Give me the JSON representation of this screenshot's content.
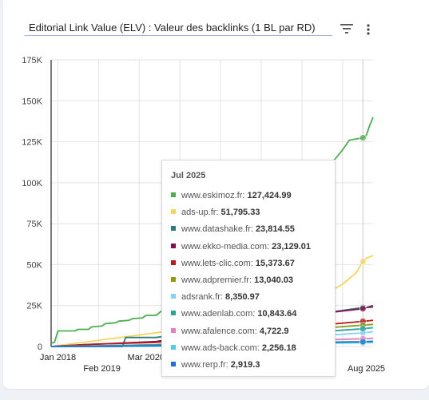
{
  "header": {
    "select_title": "Editorial Link Value (ELV) : Valeur des backlinks (1 BL par RD)"
  },
  "icons": {
    "filter": "filter-icon",
    "menu": "more-vertical-icon"
  },
  "chart_data": {
    "type": "line",
    "title": "",
    "xlabel": "",
    "ylabel": "",
    "ylim": [
      0,
      175000
    ],
    "y_ticks": [
      "0",
      "25K",
      "50K",
      "75K",
      "100K",
      "125K",
      "150K",
      "175K"
    ],
    "x_ticks": [
      {
        "label": "Jan 2018",
        "date": "2018-01"
      },
      {
        "label": "Feb 2019",
        "date": "2019-02"
      },
      {
        "label": "Mar 2020",
        "date": "2020-03"
      },
      {
        "label": "Aug 2025",
        "date": "2025-08"
      }
    ],
    "x_range": [
      "2017-11",
      "2025-10"
    ],
    "grid": true,
    "tooltip": {
      "title": "Jul 2025",
      "date": "2025-07"
    },
    "series": [
      {
        "name": "www.eskimoz.fr",
        "color": "#4caf50",
        "tooltip_value": "127,424.99",
        "points": [
          [
            "2017-11",
            2000
          ],
          [
            "2017-12",
            2500
          ],
          [
            "2018-01",
            9500
          ],
          [
            "2018-06",
            9500
          ],
          [
            "2018-07",
            10500
          ],
          [
            "2018-10",
            10500
          ],
          [
            "2018-11",
            12000
          ],
          [
            "2019-02",
            12500
          ],
          [
            "2019-03",
            14000
          ],
          [
            "2019-06",
            14500
          ],
          [
            "2019-07",
            15500
          ],
          [
            "2019-10",
            16000
          ],
          [
            "2019-11",
            17000
          ],
          [
            "2020-02",
            17500
          ],
          [
            "2020-03",
            19000
          ],
          [
            "2020-06",
            19000
          ],
          [
            "2024-05",
            100000
          ],
          [
            "2024-09",
            110000
          ],
          [
            "2025-01",
            120000
          ],
          [
            "2025-03",
            126000
          ],
          [
            "2025-07",
            127424.99
          ],
          [
            "2025-08",
            129000
          ],
          [
            "2025-09",
            135000
          ],
          [
            "2025-10",
            140000
          ]
        ]
      },
      {
        "name": "ads-up.fr",
        "color": "#f6d55c",
        "tooltip_value": "51,795.33",
        "points": [
          [
            "2017-11",
            0
          ],
          [
            "2024-01",
            20000
          ],
          [
            "2024-06",
            30000
          ],
          [
            "2025-01",
            38000
          ],
          [
            "2025-05",
            45000
          ],
          [
            "2025-07",
            51795.33
          ],
          [
            "2025-08",
            54000
          ],
          [
            "2025-10",
            55500
          ]
        ]
      },
      {
        "name": "www.datashake.fr",
        "color": "#2e7d7d",
        "tooltip_value": "23,814.55",
        "points": [
          [
            "2017-11",
            0
          ],
          [
            "2019-08",
            0
          ],
          [
            "2019-09",
            5500
          ],
          [
            "2020-06",
            5500
          ],
          [
            "2024-06",
            20000
          ],
          [
            "2025-07",
            23814.55
          ],
          [
            "2025-10",
            24000
          ]
        ]
      },
      {
        "name": "www.ekko-media.com",
        "color": "#880e4f",
        "tooltip_value": "23,129.01",
        "points": [
          [
            "2017-11",
            0
          ],
          [
            "2019-01",
            1500
          ],
          [
            "2020-06",
            3000
          ],
          [
            "2024-06",
            20000
          ],
          [
            "2025-07",
            23129.01
          ],
          [
            "2025-10",
            25000
          ]
        ]
      },
      {
        "name": "www.lets-clic.com",
        "color": "#b71c1c",
        "tooltip_value": "15,373.67",
        "points": [
          [
            "2017-11",
            0
          ],
          [
            "2018-09",
            1200
          ],
          [
            "2020-06",
            2500
          ],
          [
            "2024-06",
            13000
          ],
          [
            "2025-07",
            15373.67
          ],
          [
            "2025-10",
            16000
          ]
        ]
      },
      {
        "name": "www.adpremier.fr",
        "color": "#8d9a1a",
        "tooltip_value": "13,040.03",
        "points": [
          [
            "2017-11",
            0
          ],
          [
            "2020-06",
            1000
          ],
          [
            "2024-06",
            11000
          ],
          [
            "2025-07",
            13040.03
          ],
          [
            "2025-10",
            13500
          ]
        ]
      },
      {
        "name": "adsrank.fr",
        "color": "#81d4fa",
        "tooltip_value": "8,350.97",
        "points": [
          [
            "2017-11",
            0
          ],
          [
            "2020-06",
            800
          ],
          [
            "2024-06",
            6500
          ],
          [
            "2025-07",
            8350.97
          ],
          [
            "2025-10",
            9000
          ]
        ]
      },
      {
        "name": "www.adenlab.com",
        "color": "#26a69a",
        "tooltip_value": "10,843.64",
        "points": [
          [
            "2017-11",
            0
          ],
          [
            "2020-06",
            1000
          ],
          [
            "2024-06",
            9000
          ],
          [
            "2025-07",
            10843.64
          ],
          [
            "2025-10",
            11500
          ]
        ]
      },
      {
        "name": "www.afalence.com",
        "color": "#e57fb6",
        "tooltip_value": "4,722.9",
        "points": [
          [
            "2017-11",
            0
          ],
          [
            "2020-06",
            500
          ],
          [
            "2024-06",
            4000
          ],
          [
            "2025-07",
            4722.9
          ],
          [
            "2025-10",
            5000
          ]
        ]
      },
      {
        "name": "www.ads-back.com",
        "color": "#4dd0e1",
        "tooltip_value": "2,256.18",
        "points": [
          [
            "2017-11",
            0
          ],
          [
            "2020-06",
            300
          ],
          [
            "2024-06",
            2000
          ],
          [
            "2025-07",
            2256.18
          ],
          [
            "2025-10",
            2500
          ]
        ]
      },
      {
        "name": "www.rerp.fr",
        "color": "#1e6fd9",
        "tooltip_value": "2,919.3",
        "points": [
          [
            "2017-11",
            0
          ],
          [
            "2020-06",
            400
          ],
          [
            "2024-06",
            2600
          ],
          [
            "2025-07",
            2919.3
          ],
          [
            "2025-10",
            3200
          ]
        ]
      }
    ]
  }
}
